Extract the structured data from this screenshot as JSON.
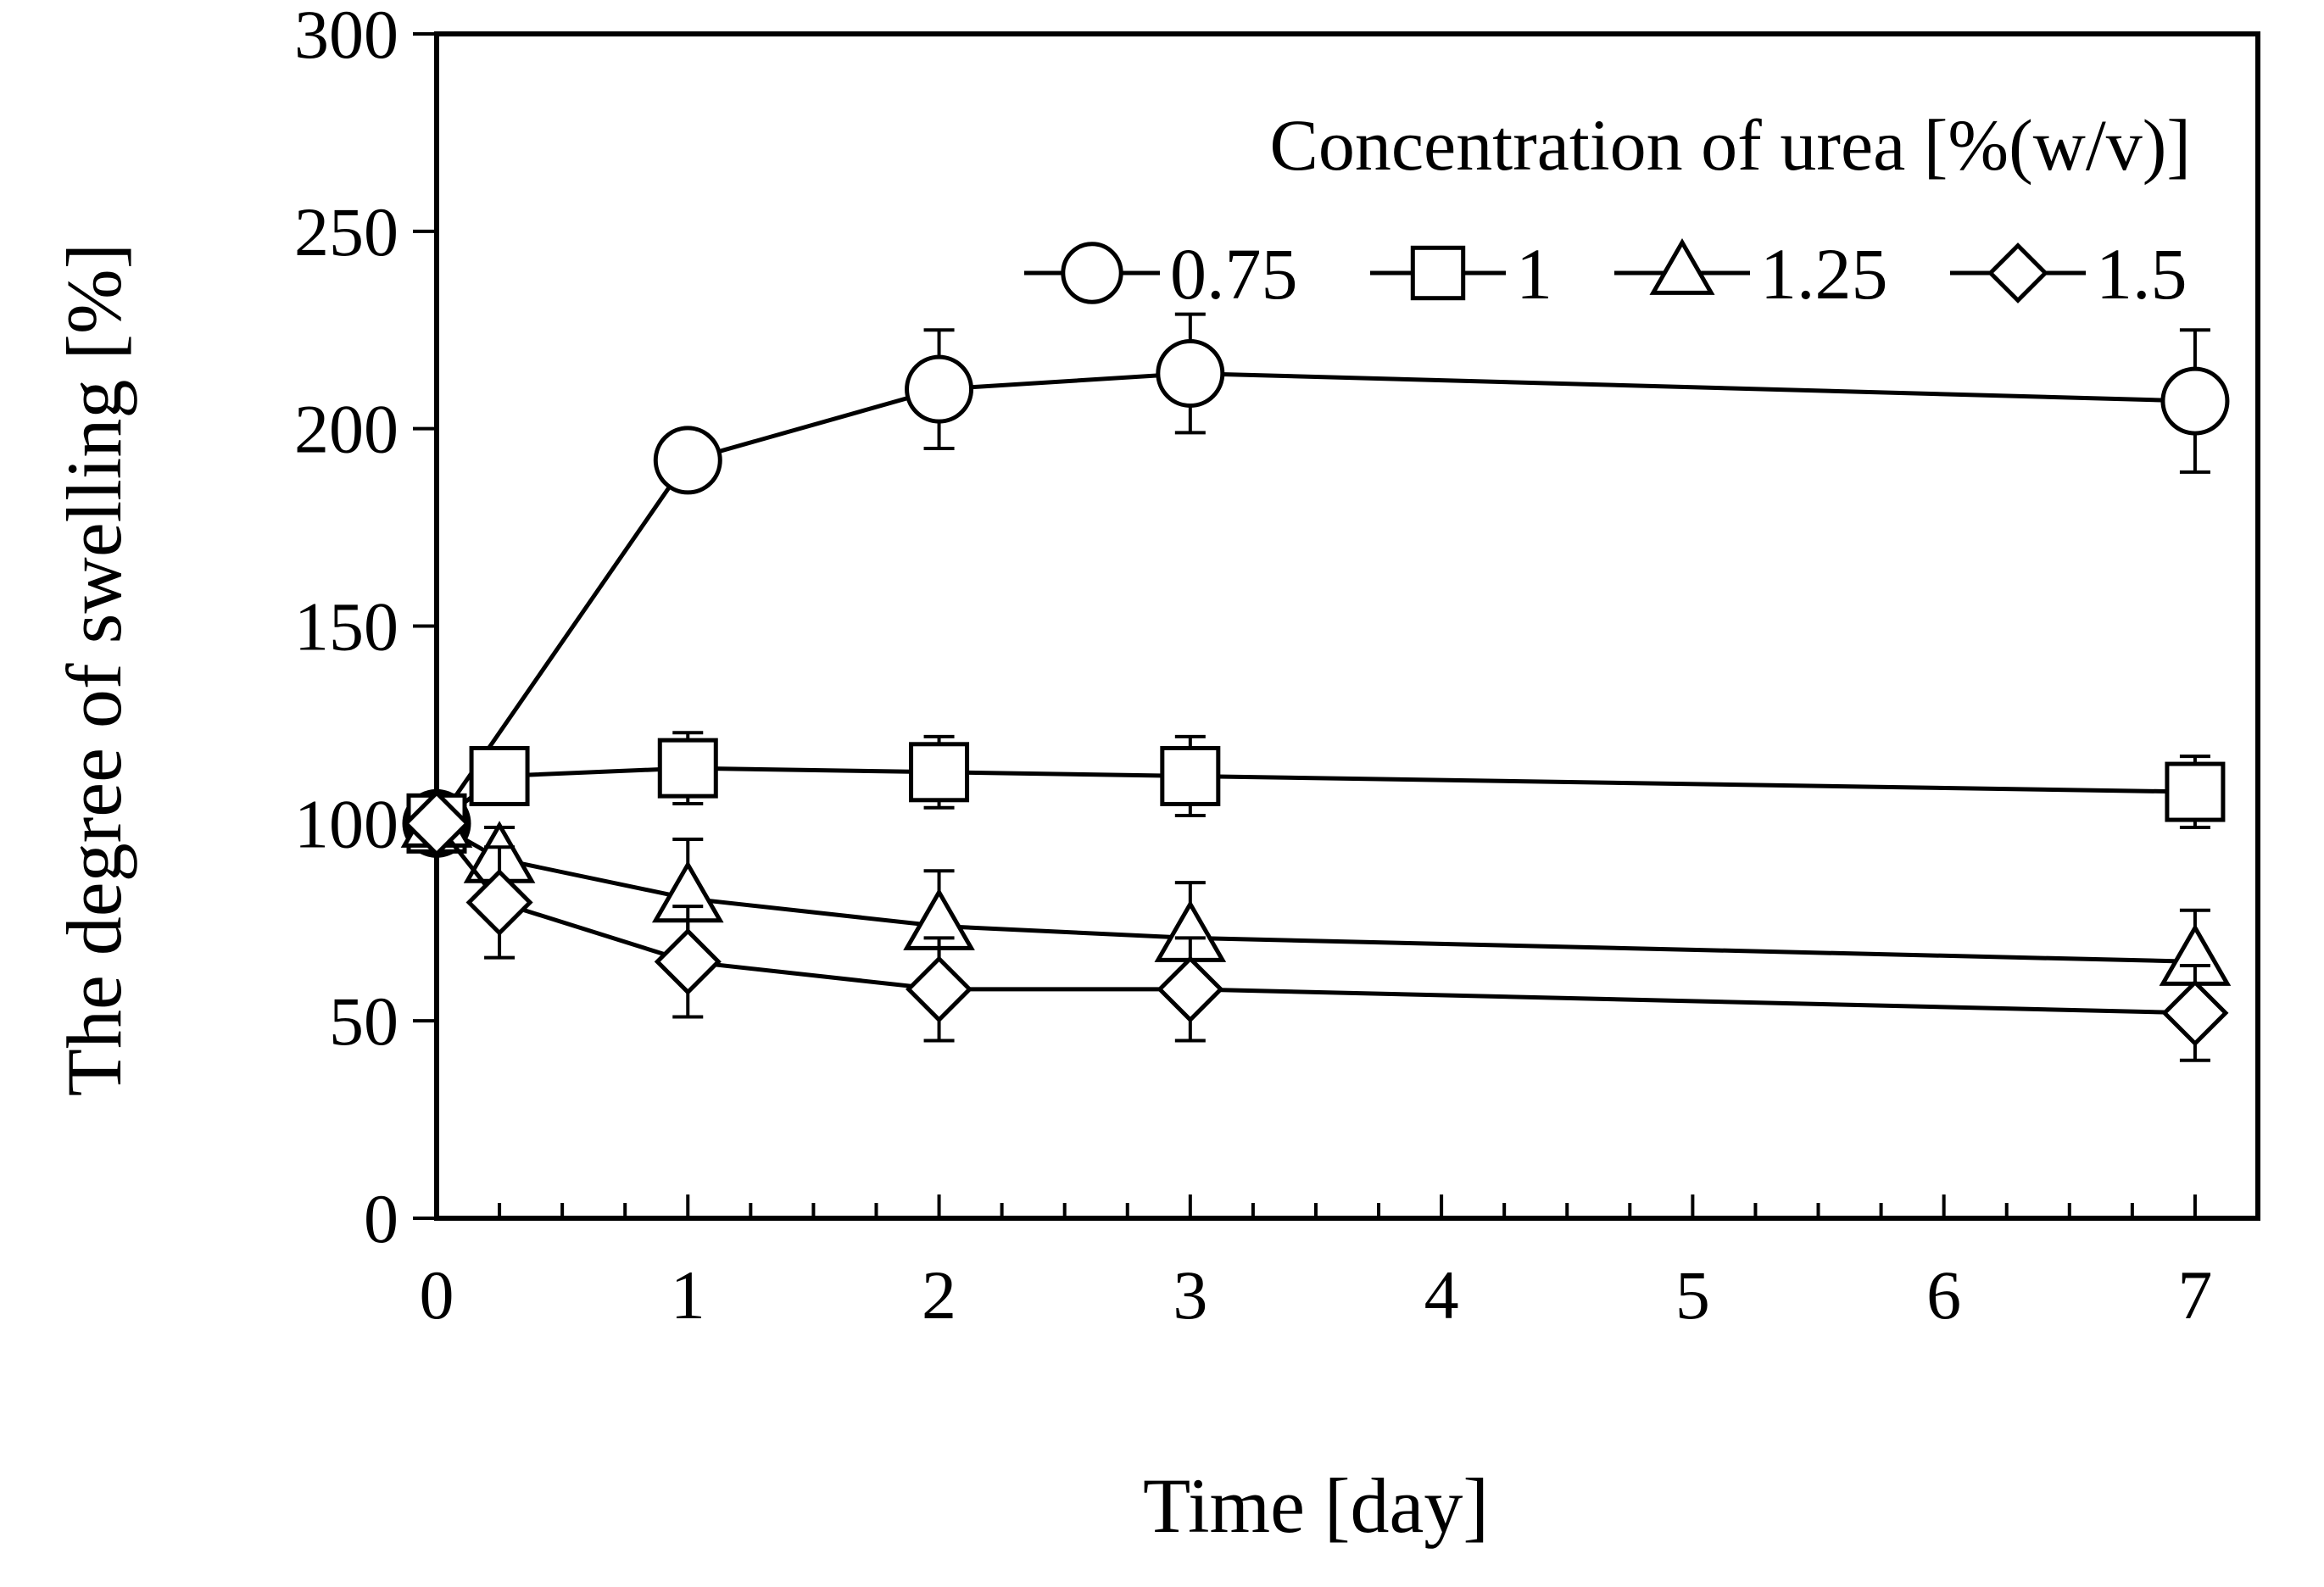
{
  "chart_data": {
    "type": "line",
    "title": "",
    "xlabel": "Time [day]",
    "ylabel": "The degree of swelling [%]",
    "xlim": [
      0,
      7.25
    ],
    "ylim": [
      0,
      300
    ],
    "x_ticks": [
      0,
      1,
      2,
      3,
      4,
      5,
      6,
      7
    ],
    "x_tick_labels": [
      "0",
      "1",
      "2",
      "3",
      "4",
      "5",
      "6",
      "7"
    ],
    "x_minor_step": 0.25,
    "y_ticks": [
      0,
      50,
      100,
      150,
      200,
      250,
      300
    ],
    "y_tick_labels": [
      "0",
      "50",
      "100",
      "150",
      "200",
      "250",
      "300"
    ],
    "grid": false,
    "legend_title": "Concentration of urea [%(w/v)]",
    "legend_position": "top-right",
    "series": [
      {
        "name": "0.75",
        "marker": "circle",
        "x": [
          0,
          1,
          2,
          3,
          7
        ],
        "values": [
          100,
          192,
          210,
          214,
          207
        ],
        "errors": [
          0,
          0,
          15,
          15,
          18
        ]
      },
      {
        "name": "1",
        "marker": "square",
        "x": [
          0,
          0.25,
          1,
          2,
          3,
          7
        ],
        "values": [
          100,
          112,
          114,
          113,
          112,
          108
        ],
        "errors": [
          0,
          5,
          9,
          9,
          10,
          9
        ]
      },
      {
        "name": "1.25",
        "marker": "triangle",
        "x": [
          0,
          0.25,
          1,
          2,
          3,
          7
        ],
        "values": [
          100,
          91,
          81,
          74,
          71,
          65
        ],
        "errors": [
          0,
          8,
          15,
          14,
          14,
          13
        ]
      },
      {
        "name": "1.5",
        "marker": "diamond",
        "x": [
          0,
          0.25,
          1,
          2,
          3,
          7
        ],
        "values": [
          100,
          80,
          65,
          58,
          58,
          52
        ],
        "errors": [
          0,
          14,
          14,
          13,
          13,
          12
        ]
      }
    ]
  }
}
